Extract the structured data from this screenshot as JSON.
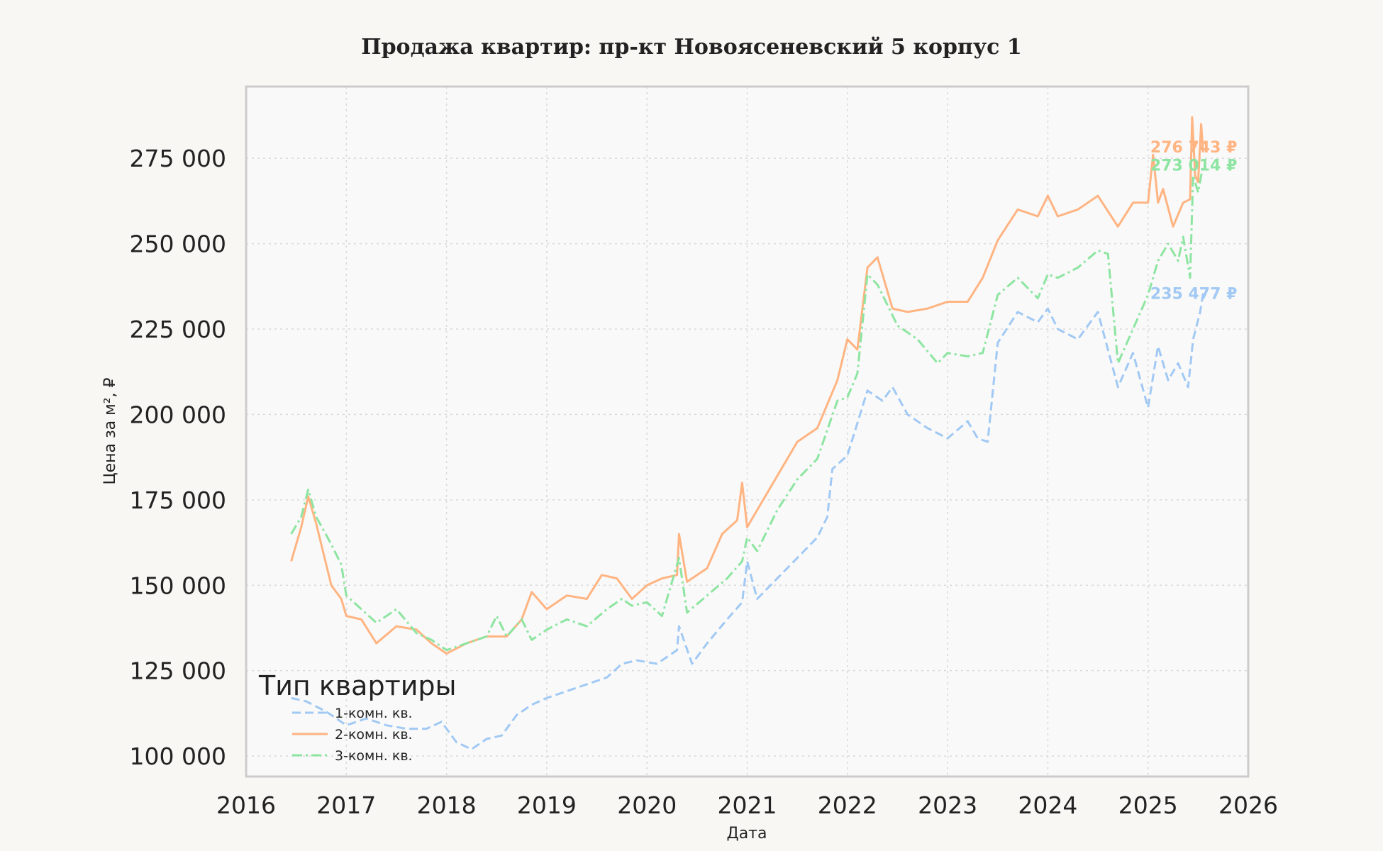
{
  "chart_data": {
    "type": "line",
    "title": "Продажа квартир: пр-кт Новоясеневский 5 корпус 1",
    "xlabel": "Дата",
    "ylabel": "Цена за м², ₽",
    "xlim": [
      2016,
      2026
    ],
    "ylim": [
      94000,
      296000
    ],
    "x_ticks": [
      2016,
      2017,
      2018,
      2019,
      2020,
      2021,
      2022,
      2023,
      2024,
      2025,
      2026
    ],
    "x_tick_labels": [
      "2016",
      "2017",
      "2018",
      "2019",
      "2020",
      "2021",
      "2022",
      "2023",
      "2024",
      "2025",
      "2026"
    ],
    "y_ticks": [
      100000,
      125000,
      150000,
      175000,
      200000,
      225000,
      250000,
      275000
    ],
    "y_tick_labels": [
      "100 000",
      "125 000",
      "150 000",
      "175 000",
      "200 000",
      "225 000",
      "250 000",
      "275 000"
    ],
    "grid": true,
    "legend": {
      "title": "Тип квартиры",
      "placement": "lower-left"
    },
    "series": [
      {
        "name": "1-комн. кв.",
        "color": "#a1c9f4",
        "dash": "dashed",
        "end_label": "235 477 ₽",
        "x": [
          2016.45,
          2016.6,
          2016.8,
          2017.0,
          2017.2,
          2017.4,
          2017.6,
          2017.8,
          2017.95,
          2018.1,
          2018.25,
          2018.4,
          2018.55,
          2018.7,
          2018.85,
          2019.0,
          2019.2,
          2019.4,
          2019.6,
          2019.75,
          2019.9,
          2020.1,
          2020.3,
          2020.32,
          2020.45,
          2020.6,
          2020.8,
          2020.95,
          2021.0,
          2021.1,
          2021.3,
          2021.5,
          2021.7,
          2021.8,
          2021.85,
          2022.0,
          2022.2,
          2022.35,
          2022.45,
          2022.6,
          2022.8,
          2023.0,
          2023.2,
          2023.3,
          2023.4,
          2023.5,
          2023.7,
          2023.9,
          2024.0,
          2024.1,
          2024.3,
          2024.5,
          2024.7,
          2024.85,
          2025.0,
          2025.1,
          2025.2,
          2025.3,
          2025.4,
          2025.45,
          2025.52,
          2025.55
        ],
        "y": [
          117000,
          116000,
          113000,
          109000,
          111000,
          109000,
          108000,
          108000,
          110000,
          104000,
          102000,
          105000,
          106000,
          112000,
          115000,
          117000,
          119000,
          121000,
          123000,
          127000,
          128000,
          127000,
          131000,
          138000,
          127000,
          133000,
          140000,
          145000,
          157000,
          146000,
          152000,
          158000,
          164000,
          170000,
          184000,
          188000,
          207000,
          204000,
          208000,
          200000,
          196000,
          193000,
          198000,
          193000,
          192000,
          221000,
          230000,
          227000,
          231000,
          225000,
          222000,
          230000,
          208000,
          218000,
          202000,
          220000,
          210000,
          215000,
          208000,
          222000,
          230000,
          235477
        ]
      },
      {
        "name": "2-комн. кв.",
        "color": "#ffb482",
        "dash": "solid",
        "end_label": "276 743 ₽",
        "x": [
          2016.45,
          2016.55,
          2016.62,
          2016.7,
          2016.85,
          2016.95,
          2017.0,
          2017.15,
          2017.3,
          2017.5,
          2017.7,
          2017.85,
          2018.0,
          2018.2,
          2018.4,
          2018.6,
          2018.75,
          2018.85,
          2019.0,
          2019.2,
          2019.4,
          2019.55,
          2019.7,
          2019.85,
          2020.0,
          2020.15,
          2020.3,
          2020.32,
          2020.4,
          2020.6,
          2020.75,
          2020.9,
          2020.95,
          2021.0,
          2021.1,
          2021.3,
          2021.5,
          2021.7,
          2021.9,
          2022.0,
          2022.1,
          2022.2,
          2022.3,
          2022.45,
          2022.6,
          2022.8,
          2023.0,
          2023.2,
          2023.35,
          2023.5,
          2023.7,
          2023.9,
          2024.0,
          2024.1,
          2024.3,
          2024.5,
          2024.7,
          2024.85,
          2025.0,
          2025.05,
          2025.1,
          2025.15,
          2025.25,
          2025.35,
          2025.42,
          2025.44,
          2025.47,
          2025.5,
          2025.53,
          2025.55
        ],
        "y": [
          157000,
          167000,
          176000,
          168000,
          150000,
          146000,
          141000,
          140000,
          133000,
          138000,
          137000,
          133000,
          130000,
          133000,
          135000,
          135000,
          140000,
          148000,
          143000,
          147000,
          146000,
          153000,
          152000,
          146000,
          150000,
          152000,
          153000,
          165000,
          151000,
          155000,
          165000,
          169000,
          180000,
          167000,
          172000,
          182000,
          192000,
          196000,
          210000,
          222000,
          219000,
          243000,
          246000,
          231000,
          230000,
          231000,
          233000,
          233000,
          240000,
          251000,
          260000,
          258000,
          264000,
          258000,
          260000,
          264000,
          255000,
          262000,
          262000,
          276000,
          262000,
          266000,
          255000,
          262000,
          263000,
          287000,
          270000,
          268000,
          285000,
          276743
        ]
      },
      {
        "name": "3-комн. кв.",
        "color": "#8de5a1",
        "dash": "dash-dot",
        "end_label": "273 014 ₽",
        "x": [
          2016.45,
          2016.55,
          2016.62,
          2016.7,
          2016.85,
          2016.95,
          2017.0,
          2017.15,
          2017.3,
          2017.5,
          2017.7,
          2017.85,
          2018.0,
          2018.2,
          2018.4,
          2018.5,
          2018.6,
          2018.75,
          2018.85,
          2019.0,
          2019.2,
          2019.4,
          2019.6,
          2019.75,
          2019.85,
          2020.0,
          2020.15,
          2020.32,
          2020.4,
          2020.6,
          2020.8,
          2020.95,
          2021.0,
          2021.1,
          2021.3,
          2021.5,
          2021.7,
          2021.9,
          2022.0,
          2022.1,
          2022.2,
          2022.3,
          2022.5,
          2022.7,
          2022.9,
          2023.0,
          2023.2,
          2023.35,
          2023.5,
          2023.7,
          2023.9,
          2024.0,
          2024.1,
          2024.3,
          2024.5,
          2024.6,
          2024.7,
          2024.85,
          2025.0,
          2025.1,
          2025.2,
          2025.3,
          2025.35,
          2025.42,
          2025.45,
          2025.5,
          2025.55
        ],
        "y": [
          165000,
          170000,
          178000,
          170000,
          162000,
          156000,
          147000,
          143000,
          139000,
          143000,
          136000,
          134000,
          131000,
          133000,
          135000,
          141000,
          135000,
          140000,
          134000,
          137000,
          140000,
          138000,
          143000,
          146000,
          144000,
          145000,
          141000,
          158000,
          142000,
          147000,
          152000,
          157000,
          164000,
          160000,
          172000,
          181000,
          187000,
          204000,
          205000,
          212000,
          241000,
          238000,
          226000,
          222000,
          215000,
          218000,
          217000,
          218000,
          235000,
          240000,
          234000,
          241000,
          240000,
          243000,
          248000,
          247000,
          215000,
          225000,
          235000,
          245000,
          250000,
          245000,
          252000,
          240000,
          270000,
          265000,
          273014
        ]
      }
    ]
  }
}
